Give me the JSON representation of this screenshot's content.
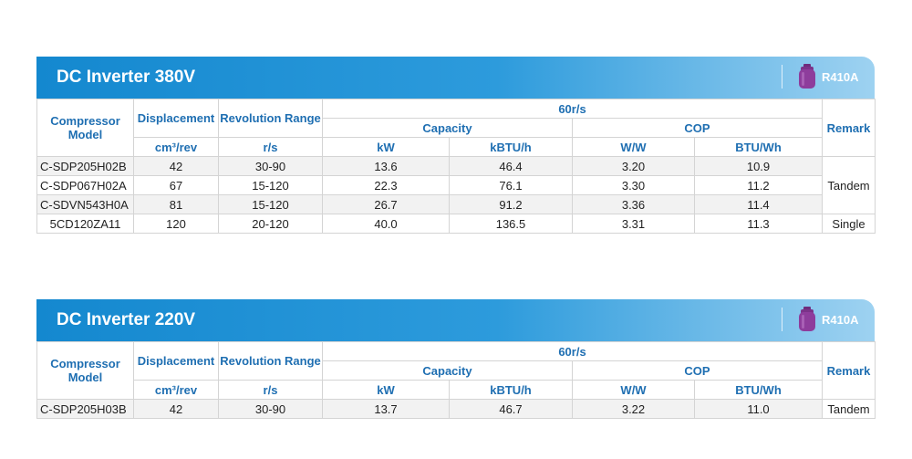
{
  "tables": [
    {
      "title": "DC Inverter 380V",
      "refrigerant": "R410A",
      "headers": {
        "model_line1": "Compressor",
        "model_line2": "Model",
        "displacement": "Displacement",
        "revolution": "Revolution Range",
        "group": "60r/s",
        "capacity": "Capacity",
        "cop": "COP",
        "remark": "Remark"
      },
      "units": [
        "cm³/rev",
        "r/s",
        "kW",
        "kBTU/h",
        "W/W",
        "BTU/Wh"
      ],
      "rows": [
        {
          "model": "C-SDP205H02B",
          "displacement": "42",
          "revolution": "30-90",
          "kw": "13.6",
          "kbtu": "46.4",
          "ww": "3.20",
          "btuwh": "10.9"
        },
        {
          "model": "C-SDP067H02A",
          "displacement": "67",
          "revolution": "15-120",
          "kw": "22.3",
          "kbtu": "76.1",
          "ww": "3.30",
          "btuwh": "11.2"
        },
        {
          "model": "C-SDVN543H0A",
          "displacement": "81",
          "revolution": "15-120",
          "kw": "26.7",
          "kbtu": "91.2",
          "ww": "3.36",
          "btuwh": "11.4"
        },
        {
          "model": "5CD120ZA11",
          "displacement": "120",
          "revolution": "20-120",
          "kw": "40.0",
          "kbtu": "136.5",
          "ww": "3.31",
          "btuwh": "11.3"
        }
      ],
      "remarks": {
        "tandem": "Tandem",
        "single": "Single"
      }
    },
    {
      "title": "DC Inverter 220V",
      "refrigerant": "R410A",
      "headers": {
        "model_line1": "Compressor",
        "model_line2": "Model",
        "displacement": "Displacement",
        "revolution": "Revolution Range",
        "group": "60r/s",
        "capacity": "Capacity",
        "cop": "COP",
        "remark": "Remark"
      },
      "units": [
        "cm³/rev",
        "r/s",
        "kW",
        "kBTU/h",
        "W/W",
        "BTU/Wh"
      ],
      "rows": [
        {
          "model": "C-SDP205H03B",
          "displacement": "42",
          "revolution": "30-90",
          "kw": "13.7",
          "kbtu": "46.7",
          "ww": "3.22",
          "btuwh": "11.0"
        }
      ],
      "remarks": {
        "tandem": "Tandem"
      }
    }
  ],
  "colors": {
    "banner_start": "#1488cf",
    "banner_end": "#9ed2f1",
    "header_text": "#1f6fb2",
    "icon": "#8e3d9c"
  }
}
